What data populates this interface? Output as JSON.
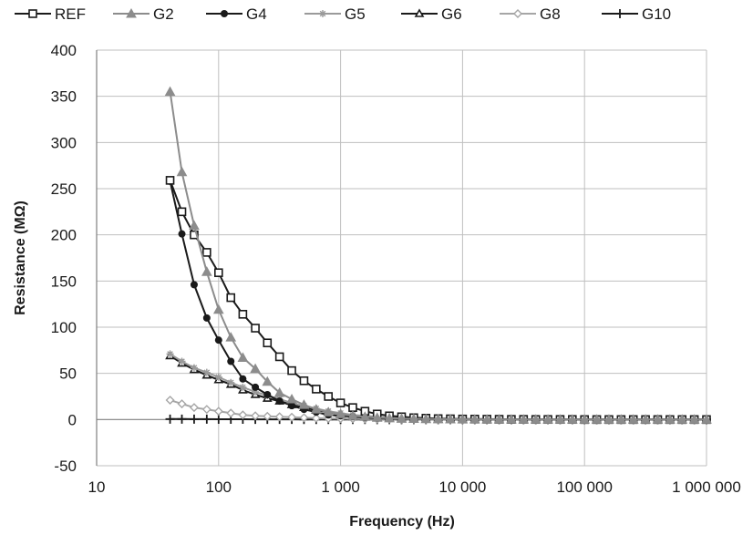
{
  "chart_data": {
    "type": "line",
    "title": "",
    "xlabel": "Frequency (Hz)",
    "ylabel": "Resistance (MΩ)",
    "xscale": "log",
    "xlim": [
      10,
      1000000
    ],
    "ylim": [
      -50,
      400
    ],
    "grid": true,
    "legend_position": "top",
    "x_tick_labels": [
      "10",
      "100",
      "1 000",
      "10 000",
      "100 000",
      "1 000 000"
    ],
    "y_tick_labels": [
      "-50",
      "0",
      "50",
      "100",
      "150",
      "200",
      "250",
      "300",
      "350",
      "400"
    ],
    "x": [
      40,
      50,
      63,
      80,
      100,
      126,
      158,
      200,
      251,
      316,
      398,
      501,
      631,
      794,
      1000,
      1259,
      1585,
      1995,
      2512,
      3162,
      3981,
      5012,
      6310,
      7943,
      10000,
      12589,
      15849,
      19953,
      25119,
      31623,
      39811,
      50119,
      63096,
      79433,
      100000,
      125893,
      158489,
      199526,
      251189,
      316228,
      398107,
      501187,
      630957,
      794328,
      1000000
    ],
    "series": [
      {
        "name": "REF",
        "color": "#1a1a1a",
        "marker": "square-open",
        "values": [
          259,
          225,
          200,
          181,
          159,
          132,
          114,
          99,
          83,
          68,
          53,
          42,
          33,
          25,
          18,
          13,
          9,
          6,
          4,
          3,
          2,
          1.5,
          1,
          0.8,
          0.6,
          0.5,
          0.4,
          0.3,
          0.2,
          0.2,
          0.1,
          0.1,
          0.1,
          0.1,
          0,
          0,
          0,
          0,
          0,
          0,
          0,
          0,
          0,
          0,
          0
        ]
      },
      {
        "name": "G2",
        "color": "#8c8c8c",
        "marker": "triangle-filled",
        "values": [
          355,
          268,
          210,
          160,
          119,
          89,
          67,
          55,
          41,
          29,
          22,
          16,
          11,
          8,
          6,
          4,
          3,
          2,
          1.5,
          1,
          0.8,
          0.6,
          0.4,
          0.3,
          0.2,
          0.2,
          0.1,
          0.1,
          0.1,
          0,
          0,
          0,
          0,
          0,
          0,
          0,
          0,
          0,
          0,
          0,
          0,
          0,
          0,
          0,
          0
        ]
      },
      {
        "name": "G4",
        "color": "#1a1a1a",
        "marker": "circle-filled",
        "values": [
          258,
          201,
          146,
          110,
          86,
          63,
          44,
          35,
          27,
          20,
          15,
          11,
          8,
          5,
          4,
          3,
          2,
          1.5,
          1,
          0.7,
          0.5,
          0.4,
          0.3,
          0.2,
          0.1,
          0.1,
          0.1,
          0,
          0,
          0,
          0,
          0,
          0,
          0,
          0,
          0,
          0,
          0,
          0,
          0,
          0,
          0,
          0,
          0,
          0
        ]
      },
      {
        "name": "G5",
        "color": "#9a9a9a",
        "marker": "asterisk",
        "values": [
          71,
          63,
          56,
          51,
          46,
          40,
          35,
          30,
          26,
          22,
          18,
          15,
          12,
          9,
          7,
          5,
          4,
          3,
          2,
          1.5,
          1,
          0.8,
          0.6,
          0.4,
          0.3,
          0.2,
          0.2,
          0.1,
          0.1,
          0,
          0,
          0,
          0,
          0,
          0,
          0,
          0,
          0,
          0,
          0,
          0,
          0,
          0,
          0,
          0
        ]
      },
      {
        "name": "G6",
        "color": "#1a1a1a",
        "marker": "triangle-open",
        "values": [
          69,
          61,
          54,
          48,
          43,
          38,
          32,
          27,
          23,
          20,
          16,
          13,
          10,
          8,
          6,
          4,
          3,
          2,
          1.5,
          1,
          0.8,
          0.6,
          0.4,
          0.3,
          0.2,
          0.2,
          0.1,
          0.1,
          0,
          0,
          0,
          0,
          0,
          0,
          0,
          0,
          0,
          0,
          0,
          0,
          0,
          0,
          0,
          0,
          0
        ]
      },
      {
        "name": "G8",
        "color": "#a6a6a6",
        "marker": "diamond",
        "values": [
          21,
          17,
          13,
          11,
          9,
          7,
          5,
          4,
          3.5,
          3,
          2.5,
          2,
          1.5,
          1.2,
          1,
          0.8,
          0.6,
          0.5,
          0.4,
          0.3,
          0.2,
          0.2,
          0.1,
          0.1,
          0.1,
          0,
          0,
          0,
          0,
          0,
          0,
          0,
          0,
          0,
          0,
          0,
          0,
          0,
          0,
          0,
          0,
          0,
          0,
          0,
          0
        ]
      },
      {
        "name": "G10",
        "color": "#1a1a1a",
        "marker": "plus",
        "values": [
          0.5,
          0.5,
          0.4,
          0.4,
          0.3,
          0.3,
          0.3,
          0.2,
          0.2,
          0.2,
          0.2,
          0.1,
          0.1,
          0.1,
          0.1,
          0.1,
          0.1,
          0,
          0,
          0,
          0,
          0,
          0,
          0,
          0,
          0,
          0,
          0,
          0,
          0,
          0,
          0,
          0,
          0,
          0,
          0,
          0,
          0,
          0,
          0,
          0,
          0,
          0,
          0,
          0
        ]
      }
    ]
  }
}
